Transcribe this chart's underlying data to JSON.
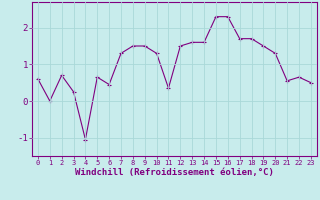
{
  "xlabel": "Windchill (Refroidissement éolien,°C)",
  "x": [
    0,
    1,
    2,
    3,
    4,
    5,
    6,
    7,
    8,
    9,
    10,
    11,
    12,
    13,
    14,
    15,
    16,
    17,
    18,
    19,
    20,
    21,
    22,
    23
  ],
  "y": [
    0.6,
    0.0,
    0.7,
    0.25,
    -1.05,
    0.65,
    0.45,
    1.3,
    1.5,
    1.5,
    1.3,
    0.35,
    1.5,
    1.6,
    1.6,
    2.3,
    2.3,
    1.7,
    1.7,
    1.5,
    1.3,
    0.55,
    0.65,
    0.5
  ],
  "line_color": "#800080",
  "marker": "+",
  "marker_size": 3,
  "marker_linewidth": 0.8,
  "bg_color": "#c8ecec",
  "grid_color": "#aad8d8",
  "xlim": [
    -0.5,
    23.5
  ],
  "ylim": [
    -1.5,
    2.7
  ],
  "yticks": [
    -1,
    0,
    1,
    2
  ],
  "xticks": [
    0,
    1,
    2,
    3,
    4,
    5,
    6,
    7,
    8,
    9,
    10,
    11,
    12,
    13,
    14,
    15,
    16,
    17,
    18,
    19,
    20,
    21,
    22,
    23
  ],
  "tick_color": "#800080",
  "tick_fontsize": 5,
  "xlabel_fontsize": 6.5,
  "spine_color": "#800080",
  "linewidth": 0.8
}
